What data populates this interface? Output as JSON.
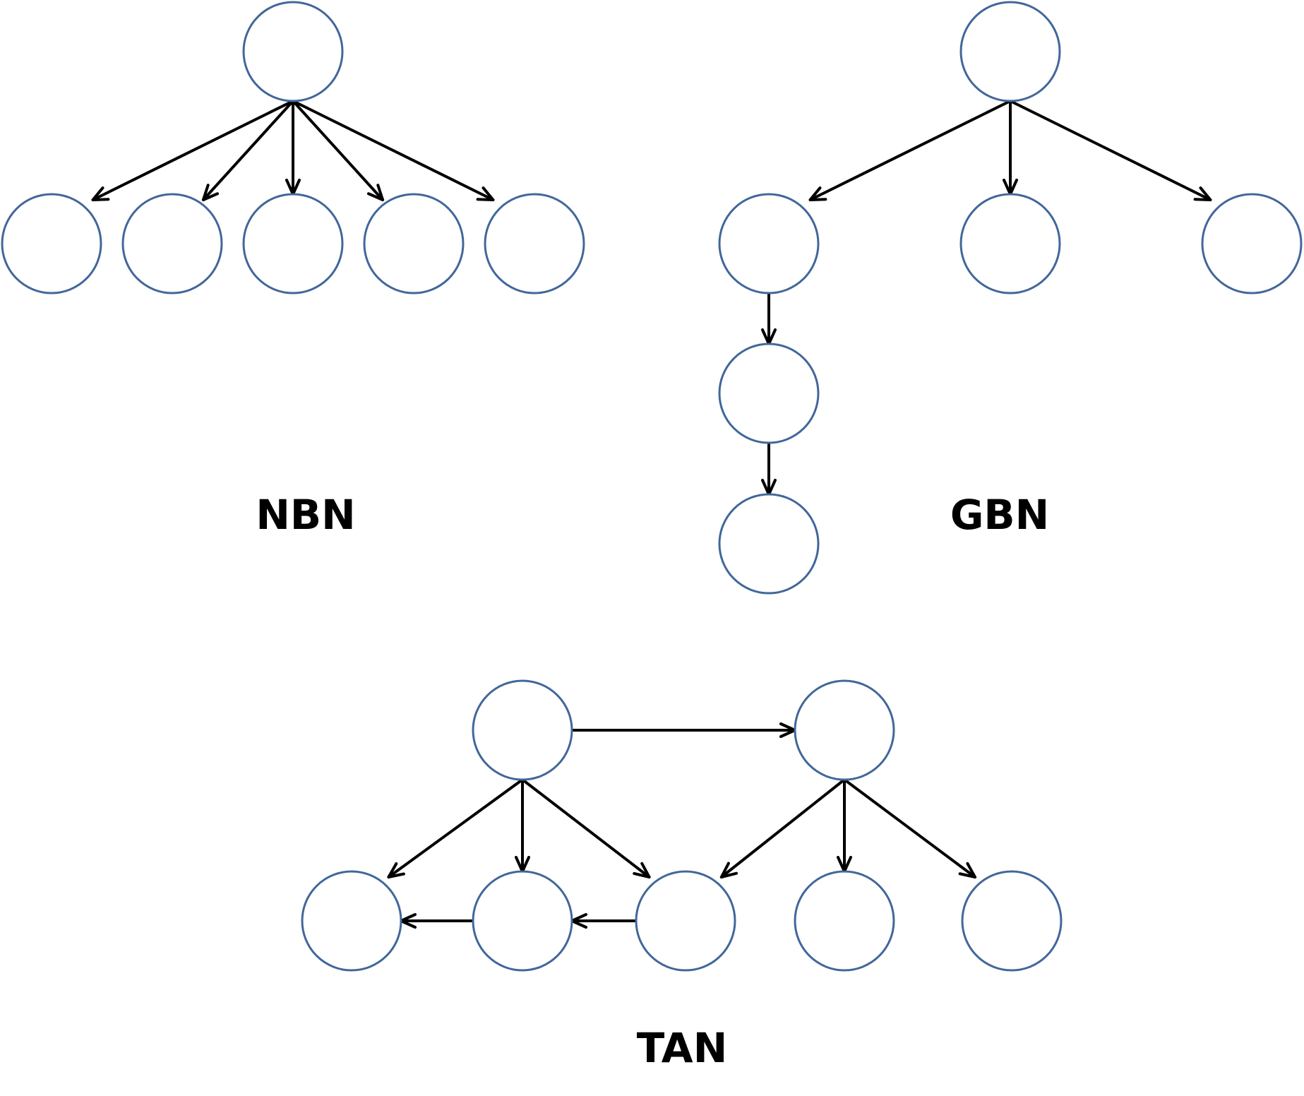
{
  "colors": {
    "node_stroke": "#41679a",
    "edge": "#000000",
    "label": "#000000",
    "background": "#ffffff"
  },
  "panels": [
    {
      "id": "nbn",
      "label": "NBN",
      "nodes": [
        "root",
        "c1",
        "c2",
        "c3",
        "c4",
        "c5"
      ],
      "edges": [
        [
          "root",
          "c1"
        ],
        [
          "root",
          "c2"
        ],
        [
          "root",
          "c3"
        ],
        [
          "root",
          "c4"
        ],
        [
          "root",
          "c5"
        ]
      ]
    },
    {
      "id": "gbn",
      "label": "GBN",
      "nodes": [
        "root",
        "c1",
        "c2",
        "c3",
        "d1",
        "d2"
      ],
      "edges": [
        [
          "root",
          "c1"
        ],
        [
          "root",
          "c2"
        ],
        [
          "root",
          "c3"
        ],
        [
          "c1",
          "d1"
        ],
        [
          "d1",
          "d2"
        ]
      ]
    },
    {
      "id": "tan",
      "label": "TAN",
      "nodes": [
        "p1",
        "p2",
        "b1",
        "b2",
        "b3",
        "b4",
        "b5"
      ],
      "edges": [
        [
          "p1",
          "p2"
        ],
        [
          "p1",
          "b1"
        ],
        [
          "p1",
          "b2"
        ],
        [
          "p1",
          "b3"
        ],
        [
          "p2",
          "b3"
        ],
        [
          "p2",
          "b4"
        ],
        [
          "p2",
          "b5"
        ],
        [
          "b2",
          "b1"
        ],
        [
          "b3",
          "b2"
        ]
      ]
    }
  ]
}
